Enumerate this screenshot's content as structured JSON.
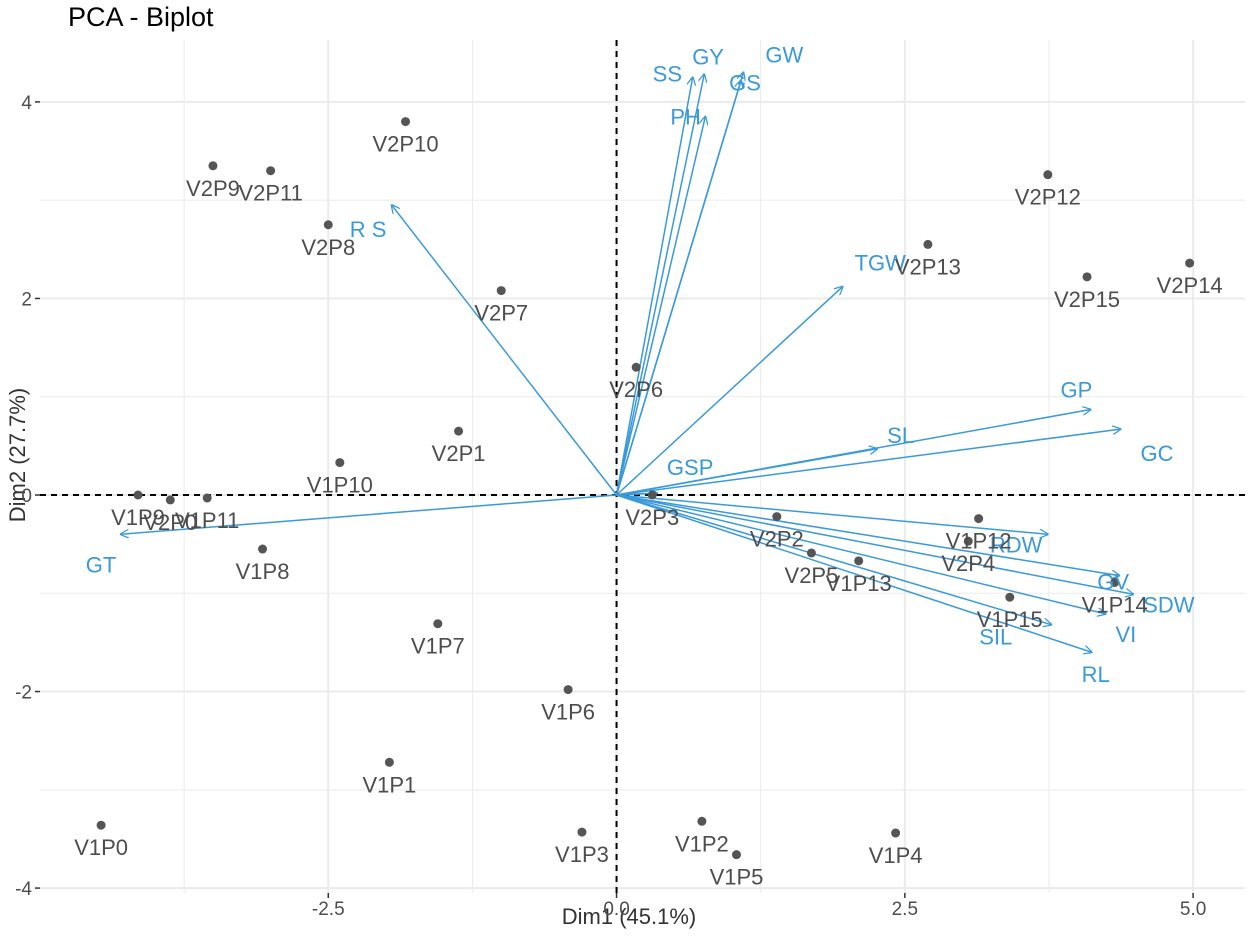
{
  "chart_data": {
    "type": "scatter",
    "title": "PCA - Biplot",
    "xlabel": "Dim1 (45.1%)",
    "ylabel": "Dim2 (27.7%)",
    "xlim": [
      -5.0,
      5.45
    ],
    "ylim": [
      -4.05,
      4.63
    ],
    "xticks": [
      -2.5,
      0.0,
      2.5,
      5.0
    ],
    "xtick_labels": [
      "-2.5",
      "0.0",
      "2.5",
      "5.0"
    ],
    "yticks": [
      -4,
      -2,
      0,
      2,
      4
    ],
    "ytick_labels": [
      "-4",
      "-2",
      "0",
      "2",
      "4"
    ],
    "grid": true,
    "colors": {
      "points": "#555555",
      "variables": "#3a9ad9",
      "zero_lines": "#000000",
      "grid": "#ebebeb"
    },
    "individuals": [
      {
        "name": "V1P0",
        "x": -4.47,
        "y": -3.36
      },
      {
        "name": "V1P1",
        "x": -1.97,
        "y": -2.72
      },
      {
        "name": "V1P2",
        "x": 0.74,
        "y": -3.32
      },
      {
        "name": "V1P3",
        "x": -0.3,
        "y": -3.43
      },
      {
        "name": "V1P4",
        "x": 2.42,
        "y": -3.44
      },
      {
        "name": "V1P5",
        "x": 1.04,
        "y": -3.66
      },
      {
        "name": "V1P6",
        "x": -0.42,
        "y": -1.98
      },
      {
        "name": "V1P7",
        "x": -1.55,
        "y": -1.31
      },
      {
        "name": "V1P8",
        "x": -3.07,
        "y": -0.55
      },
      {
        "name": "V1P9",
        "x": -4.15,
        "y": 0.0
      },
      {
        "name": "V1P10",
        "x": -2.4,
        "y": 0.33
      },
      {
        "name": "V1P11",
        "x": -3.55,
        "y": -0.03
      },
      {
        "name": "V1P12",
        "x": 3.14,
        "y": -0.24
      },
      {
        "name": "V1P13",
        "x": 2.1,
        "y": -0.67
      },
      {
        "name": "V1P14",
        "x": 4.32,
        "y": -0.89
      },
      {
        "name": "V1P15",
        "x": 3.41,
        "y": -1.04
      },
      {
        "name": "V2P0",
        "x": -3.87,
        "y": -0.05
      },
      {
        "name": "V2P1",
        "x": -1.37,
        "y": 0.65
      },
      {
        "name": "V2P2",
        "x": 1.39,
        "y": -0.22
      },
      {
        "name": "V2P3",
        "x": 0.31,
        "y": 0.0
      },
      {
        "name": "V2P4",
        "x": 3.05,
        "y": -0.47
      },
      {
        "name": "V2P5",
        "x": 1.69,
        "y": -0.59
      },
      {
        "name": "V2P6",
        "x": 0.17,
        "y": 1.3
      },
      {
        "name": "V2P7",
        "x": -1.0,
        "y": 2.08
      },
      {
        "name": "V2P8",
        "x": -2.5,
        "y": 2.75
      },
      {
        "name": "V2P9",
        "x": -3.5,
        "y": 3.35
      },
      {
        "name": "V2P10",
        "x": -1.83,
        "y": 3.8
      },
      {
        "name": "V2P11",
        "x": -3.0,
        "y": 3.3
      },
      {
        "name": "V2P12",
        "x": 3.74,
        "y": 3.26
      },
      {
        "name": "V2P13",
        "x": 2.7,
        "y": 2.55
      },
      {
        "name": "V2P14",
        "x": 4.97,
        "y": 2.36
      },
      {
        "name": "V2P15",
        "x": 4.08,
        "y": 2.22
      }
    ],
    "variables": [
      {
        "name": "GY",
        "x": 0.76,
        "y": 4.28
      },
      {
        "name": "GW",
        "x": 1.1,
        "y": 4.3
      },
      {
        "name": "SS",
        "x": 0.66,
        "y": 4.25
      },
      {
        "name": "GS",
        "x": 1.08,
        "y": 4.22
      },
      {
        "name": "PH",
        "x": 0.77,
        "y": 3.85
      },
      {
        "name": "R S",
        "x": -1.95,
        "y": 2.95
      },
      {
        "name": "TGW",
        "x": 1.96,
        "y": 2.12
      },
      {
        "name": "GP",
        "x": 4.11,
        "y": 0.87
      },
      {
        "name": "GC",
        "x": 4.37,
        "y": 0.67
      },
      {
        "name": "SL",
        "x": 2.26,
        "y": 0.47
      },
      {
        "name": "GSP",
        "x": 0.35,
        "y": 0.02
      },
      {
        "name": "GT",
        "x": -4.3,
        "y": -0.4
      },
      {
        "name": "RDW",
        "x": 3.74,
        "y": -0.4
      },
      {
        "name": "GV",
        "x": 4.36,
        "y": -0.82
      },
      {
        "name": "SDW",
        "x": 4.48,
        "y": -1.01
      },
      {
        "name": "VI",
        "x": 4.24,
        "y": -1.21
      },
      {
        "name": "SIL",
        "x": 3.77,
        "y": -1.32
      },
      {
        "name": "RL",
        "x": 4.12,
        "y": -1.6
      }
    ]
  }
}
